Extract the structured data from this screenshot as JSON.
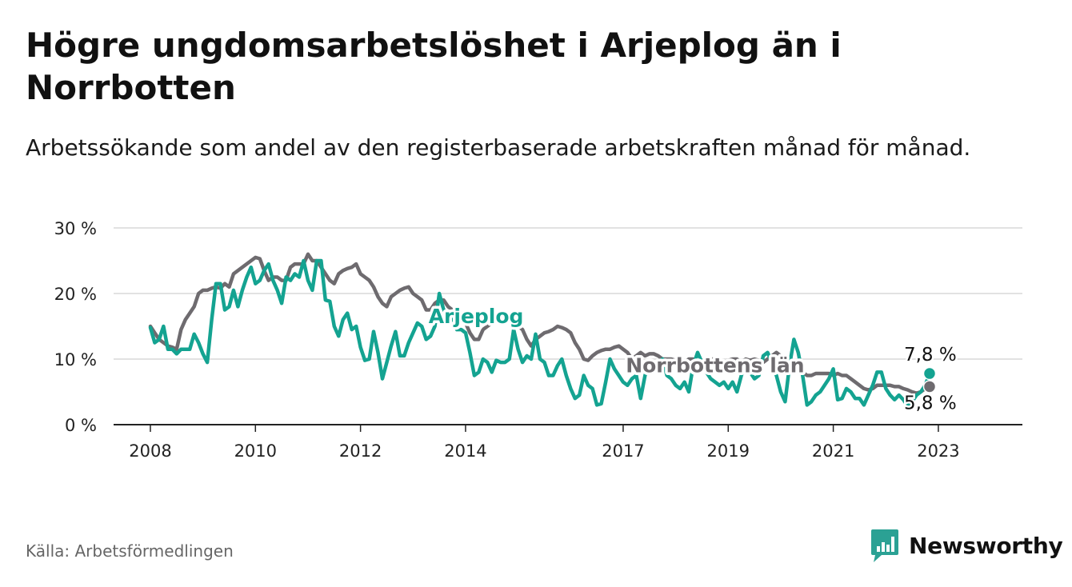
{
  "title": "Högre ungdomsarbetslöshet i Arjeplog än i Norrbotten",
  "subtitle": "Arbetssökande som andel av den registerbaserade arbetskraften månad för månad.",
  "source": "Källa: Arbetsförmedlingen",
  "brand": {
    "name": "Newsworthy",
    "icon": "newsworthy-logo-icon"
  },
  "colors": {
    "arjeplog": "#14a391",
    "norrbotten": "#6e6b6f",
    "grid": "#d9d9d9",
    "axis": "#222222",
    "brand": "#2ba194"
  },
  "chart_data": {
    "type": "line",
    "title": "Högre ungdomsarbetslöshet i Arjeplog än i Norrbotten",
    "xlabel": "",
    "ylabel": "",
    "x_start": 2008.0,
    "x_step_months": 1,
    "xlim": [
      2007.3,
      2024.6
    ],
    "ylim": [
      0,
      30
    ],
    "y_ticks": [
      0,
      10,
      20,
      30
    ],
    "y_tick_labels": [
      "0 %",
      "10 %",
      "20 %",
      "30 %"
    ],
    "x_ticks": [
      2008,
      2010,
      2012,
      2014,
      2017,
      2019,
      2021,
      2023
    ],
    "x_tick_labels": [
      "2008",
      "2010",
      "2012",
      "2014",
      "2017",
      "2019",
      "2021",
      "2023"
    ],
    "grid": true,
    "series": [
      {
        "name": "Arjeplog",
        "label": "Arjeplog",
        "end_label": "7,8 %",
        "values": [
          14.8,
          12.5,
          13.0,
          15.0,
          11.5,
          11.5,
          10.8,
          11.5,
          11.5,
          11.5,
          13.8,
          12.5,
          10.8,
          9.5,
          16.0,
          21.5,
          21.5,
          17.5,
          18.0,
          20.5,
          18.0,
          20.5,
          22.5,
          24.0,
          21.5,
          22.0,
          23.5,
          24.5,
          22.0,
          20.5,
          18.5,
          22.5,
          22.0,
          23.0,
          22.5,
          25.0,
          22.0,
          20.5,
          25.0,
          25.0,
          19.0,
          18.8,
          15.0,
          13.5,
          16.0,
          17.0,
          14.5,
          15.0,
          11.8,
          9.8,
          10.0,
          14.2,
          11.0,
          7.0,
          9.5,
          12.0,
          14.2,
          10.5,
          10.5,
          12.5,
          14.0,
          15.5,
          15.0,
          13.0,
          13.5,
          15.0,
          20.0,
          17.5,
          16.0,
          16.5,
          14.5,
          14.5,
          14.0,
          11.0,
          7.5,
          8.0,
          10.0,
          9.5,
          8.0,
          9.8,
          9.5,
          9.5,
          10.0,
          14.5,
          11.5,
          9.5,
          10.5,
          10.0,
          13.8,
          10.0,
          9.5,
          7.5,
          7.5,
          9.0,
          10.0,
          7.5,
          5.5,
          4.0,
          4.5,
          7.5,
          6.0,
          5.5,
          3.0,
          3.2,
          6.5,
          10.0,
          8.5,
          7.5,
          6.5,
          6.0,
          7.0,
          7.5,
          4.0,
          7.5,
          9.5,
          9.0,
          9.5,
          10.0,
          7.5,
          7.0,
          6.0,
          5.5,
          6.5,
          5.0,
          9.0,
          11.0,
          9.5,
          8.0,
          7.0,
          6.5,
          6.0,
          6.5,
          5.5,
          6.5,
          5.0,
          7.5,
          9.5,
          8.0,
          7.0,
          7.5,
          10.5,
          11.0,
          9.5,
          7.5,
          5.0,
          3.5,
          9.0,
          13.0,
          11.0,
          7.5,
          3.0,
          3.5,
          4.5,
          5.0,
          6.0,
          7.0,
          8.5,
          3.8,
          4.0,
          5.5,
          5.0,
          4.0,
          4.0,
          3.0,
          4.5,
          6.0,
          8.0,
          8.0,
          5.5,
          4.5,
          3.8,
          4.5,
          3.8,
          2.8,
          3.5,
          4.5,
          5.0,
          6.0,
          7.8
        ]
      },
      {
        "name": "Norrbottens län",
        "label": "Norrbottens län",
        "end_label": "5,8 %",
        "values": [
          15.0,
          14.0,
          13.0,
          12.5,
          12.0,
          11.8,
          11.5,
          14.5,
          16.0,
          17.0,
          18.0,
          20.0,
          20.5,
          20.5,
          20.8,
          21.0,
          20.8,
          21.5,
          21.0,
          23.0,
          23.5,
          24.0,
          24.5,
          25.0,
          25.5,
          25.3,
          23.5,
          22.0,
          22.5,
          22.5,
          22.0,
          22.0,
          24.0,
          24.5,
          24.5,
          24.5,
          26.0,
          25.0,
          25.0,
          24.0,
          23.0,
          22.0,
          21.5,
          23.0,
          23.5,
          23.8,
          24.0,
          24.5,
          23.0,
          22.5,
          22.0,
          21.0,
          19.5,
          18.5,
          18.0,
          19.5,
          20.0,
          20.5,
          20.8,
          21.0,
          20.0,
          19.5,
          19.0,
          17.5,
          17.5,
          18.5,
          19.0,
          19.0,
          18.0,
          17.5,
          17.0,
          16.5,
          15.5,
          14.0,
          13.0,
          13.0,
          14.5,
          15.0,
          15.5,
          16.0,
          16.5,
          16.5,
          16.0,
          15.5,
          15.0,
          14.5,
          13.0,
          12.0,
          13.0,
          13.5,
          14.0,
          14.2,
          14.5,
          15.0,
          14.8,
          14.5,
          14.0,
          12.5,
          11.5,
          10.0,
          9.8,
          10.5,
          11.0,
          11.3,
          11.5,
          11.5,
          11.8,
          12.0,
          11.5,
          11.0,
          10.0,
          10.5,
          11.0,
          10.5,
          10.8,
          10.8,
          10.5,
          10.0,
          10.0,
          10.0,
          9.8,
          9.8,
          9.5,
          10.0,
          10.0,
          9.5,
          9.5,
          9.8,
          10.0,
          10.0,
          9.5,
          9.5,
          9.8,
          10.0,
          10.0,
          9.5,
          10.0,
          9.8,
          10.0,
          9.8,
          9.5,
          10.0,
          10.5,
          11.0,
          10.5,
          10.0,
          9.5,
          9.0,
          8.5,
          8.0,
          7.5,
          7.5,
          7.8,
          7.8,
          7.8,
          7.8,
          7.5,
          7.8,
          7.5,
          7.5,
          7.0,
          6.5,
          6.0,
          5.5,
          5.3,
          5.5,
          6.0,
          6.0,
          6.0,
          6.0,
          5.8,
          5.8,
          5.5,
          5.3,
          5.0,
          4.8,
          5.0,
          5.5,
          5.8
        ]
      }
    ]
  }
}
